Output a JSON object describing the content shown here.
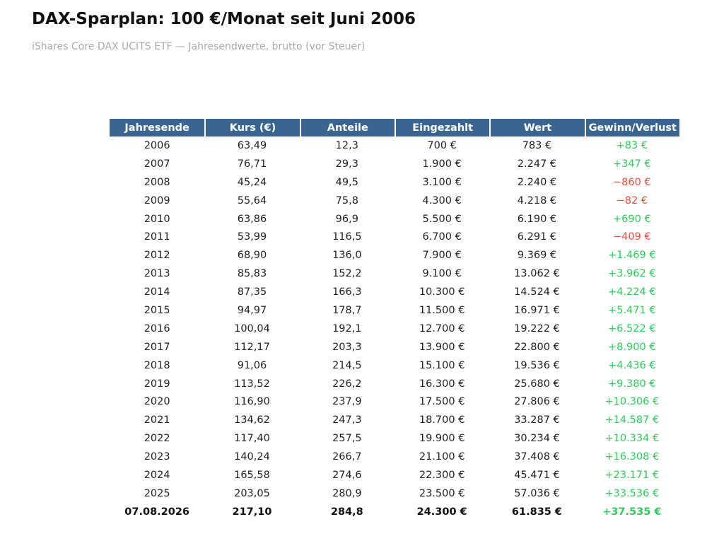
{
  "title": "DAX-Sparplan: 100 €/Monat seit Juni 2006",
  "subtitle": "iShares Core DAX UCITS ETF — Jahresendwerte, brutto (vor Steuer)",
  "colors": {
    "header_bg": "#3b6591",
    "header_text": "#ffffff",
    "gain": "#2ecc5a",
    "loss": "#ee4c3e"
  },
  "chart_data": {
    "type": "table",
    "columns": [
      "Jahresende",
      "Kurs (€)",
      "Anteile",
      "Eingezahlt",
      "Wert",
      "Gewinn/Verlust"
    ],
    "rows": [
      [
        "2006",
        "63,49",
        "12,3",
        "700 €",
        "783 €",
        "+83 €"
      ],
      [
        "2007",
        "76,71",
        "29,3",
        "1.900 €",
        "2.247 €",
        "+347 €"
      ],
      [
        "2008",
        "45,24",
        "49,5",
        "3.100 €",
        "2.240 €",
        "−860 €"
      ],
      [
        "2009",
        "55,64",
        "75,8",
        "4.300 €",
        "4.218 €",
        "−82 €"
      ],
      [
        "2010",
        "63,86",
        "96,9",
        "5.500 €",
        "6.190 €",
        "+690 €"
      ],
      [
        "2011",
        "53,99",
        "116,5",
        "6.700 €",
        "6.291 €",
        "−409 €"
      ],
      [
        "2012",
        "68,90",
        "136,0",
        "7.900 €",
        "9.369 €",
        "+1.469 €"
      ],
      [
        "2013",
        "85,83",
        "152,2",
        "9.100 €",
        "13.062 €",
        "+3.962 €"
      ],
      [
        "2014",
        "87,35",
        "166,3",
        "10.300 €",
        "14.524 €",
        "+4.224 €"
      ],
      [
        "2015",
        "94,97",
        "178,7",
        "11.500 €",
        "16.971 €",
        "+5.471 €"
      ],
      [
        "2016",
        "100,04",
        "192,1",
        "12.700 €",
        "19.222 €",
        "+6.522 €"
      ],
      [
        "2017",
        "112,17",
        "203,3",
        "13.900 €",
        "22.800 €",
        "+8.900 €"
      ],
      [
        "2018",
        "91,06",
        "214,5",
        "15.100 €",
        "19.536 €",
        "+4.436 €"
      ],
      [
        "2019",
        "113,52",
        "226,2",
        "16.300 €",
        "25.680 €",
        "+9.380 €"
      ],
      [
        "2020",
        "116,90",
        "237,9",
        "17.500 €",
        "27.806 €",
        "+10.306 €"
      ],
      [
        "2021",
        "134,62",
        "247,3",
        "18.700 €",
        "33.287 €",
        "+14.587 €"
      ],
      [
        "2022",
        "117,40",
        "257,5",
        "19.900 €",
        "30.234 €",
        "+10.334 €"
      ],
      [
        "2023",
        "140,24",
        "266,7",
        "21.100 €",
        "37.408 €",
        "+16.308 €"
      ],
      [
        "2024",
        "165,58",
        "274,6",
        "22.300 €",
        "45.471 €",
        "+23.171 €"
      ],
      [
        "2025",
        "203,05",
        "280,9",
        "23.500 €",
        "57.036 €",
        "+33.536 €"
      ]
    ],
    "total_row": [
      "07.08.2026",
      "217,10",
      "284,8",
      "24.300 €",
      "61.835 €",
      "+37.535 €"
    ]
  }
}
